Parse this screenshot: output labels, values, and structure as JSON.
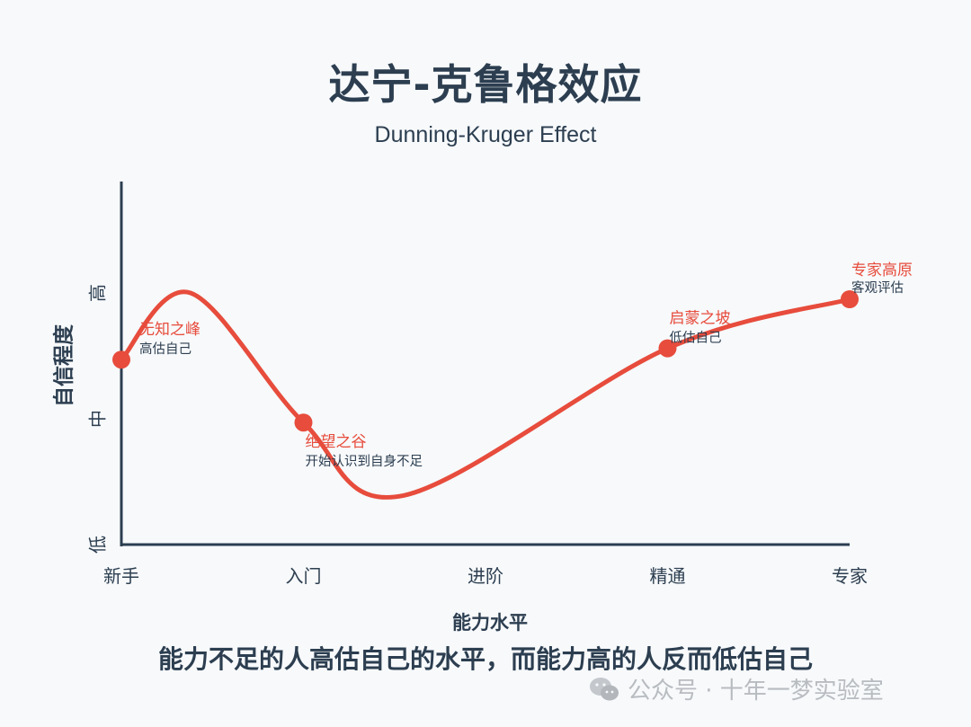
{
  "title": "达宁-克鲁格效应",
  "subtitle": "Dunning-Kruger Effect",
  "footer": "能力不足的人高估自己的水平，而能力高的人反而低估自己",
  "watermark": "公众号 · 十年一梦实验室",
  "icons": {
    "watermark": "wechat-icon"
  },
  "colors": {
    "curve": "#e74c3c",
    "axis": "#2c3e50",
    "label_main": "#e74c3c",
    "label_sub": "#2c3e50"
  },
  "chart_data": {
    "type": "line",
    "xlabel": "能力水平",
    "ylabel": "自信程度",
    "x_categories": [
      "新手",
      "入门",
      "进阶",
      "精通",
      "专家"
    ],
    "y_ticks": [
      {
        "label": "低",
        "value": 0
      },
      {
        "label": "中",
        "value": 1
      },
      {
        "label": "高",
        "value": 2
      }
    ],
    "xlim": [
      0,
      4
    ],
    "ylim": [
      0,
      2.9
    ],
    "curve": [
      {
        "x": 0,
        "y": 1.47
      },
      {
        "x": 0.38,
        "y": 2.0
      },
      {
        "x": 1.0,
        "y": 0.97
      },
      {
        "x": 1.55,
        "y": 0.39
      },
      {
        "x": 3.0,
        "y": 1.56
      },
      {
        "x": 4.0,
        "y": 1.95
      }
    ],
    "annotations": [
      {
        "x": 0,
        "y": 1.47,
        "label": "无知之峰",
        "sub": "高估自己"
      },
      {
        "x": 1,
        "y": 0.97,
        "label": "绝望之谷",
        "sub": "开始认识到自身不足"
      },
      {
        "x": 3,
        "y": 1.56,
        "label": "启蒙之坡",
        "sub": "低估自己"
      },
      {
        "x": 4,
        "y": 1.95,
        "label": "专家高原",
        "sub": "客观评估"
      }
    ]
  }
}
